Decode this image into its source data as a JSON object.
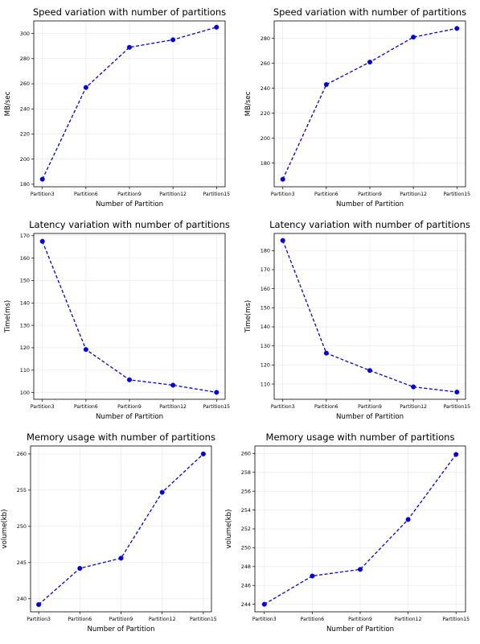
{
  "colors": {
    "line": "#0000e6",
    "marker": "#0000e6",
    "grid": "#e6e6e6",
    "frame": "#000000"
  },
  "chart_data": [
    {
      "type": "line",
      "title": "Speed variation with number of partitions",
      "xlabel": "Number of Partition",
      "ylabel": "MB/sec",
      "categories": [
        "Partition3",
        "Partition6",
        "Partition9",
        "Partition12",
        "Partition15"
      ],
      "values": [
        184,
        257,
        289,
        295,
        305
      ],
      "ylim": [
        178,
        310
      ],
      "yticks": [
        180,
        200,
        220,
        240,
        260,
        280,
        300
      ],
      "ytick_labels": [
        "180",
        "200",
        "220",
        "240",
        "260",
        "280",
        "300"
      ],
      "grid": true,
      "line_style": "dashed"
    },
    {
      "type": "line",
      "title": "Speed variation with number of partitions",
      "xlabel": "Number of Partition",
      "ylabel": "MB/sec",
      "categories": [
        "Partition3",
        "Partition6",
        "Partition9",
        "Partition12",
        "Partition15"
      ],
      "values": [
        167,
        243,
        261,
        281,
        288
      ],
      "ylim": [
        161,
        294
      ],
      "yticks": [
        180,
        200,
        220,
        240,
        260,
        280
      ],
      "ytick_labels": [
        "180",
        "200",
        "220",
        "240",
        "260",
        "280"
      ],
      "grid": true,
      "line_style": "dashed"
    },
    {
      "type": "line",
      "title": "Latency variation with number of partitions",
      "xlabel": "Number of Partition",
      "ylabel": "Time(ms)",
      "categories": [
        "Partition3",
        "Partition6",
        "Partition9",
        "Partition12",
        "Partition15"
      ],
      "values": [
        167.5,
        119.2,
        105.7,
        103.3,
        100.1
      ],
      "ylim": [
        97,
        171
      ],
      "yticks": [
        100,
        110,
        120,
        130,
        140,
        150,
        160,
        170
      ],
      "ytick_labels": [
        "100",
        "110",
        "120",
        "130",
        "140",
        "150",
        "160",
        "170"
      ],
      "grid": true,
      "line_style": "dashed"
    },
    {
      "type": "line",
      "title": "Latency variation with number of partitions",
      "xlabel": "Number of Partition",
      "ylabel": "Time(ms)",
      "categories": [
        "Partition3",
        "Partition6",
        "Partition9",
        "Partition12",
        "Partition15"
      ],
      "values": [
        185.3,
        126.2,
        117.1,
        108.5,
        105.8
      ],
      "ylim": [
        102,
        189
      ],
      "yticks": [
        110,
        120,
        130,
        140,
        150,
        160,
        170,
        180
      ],
      "ytick_labels": [
        "110",
        "120",
        "130",
        "140",
        "150",
        "160",
        "170",
        "180"
      ],
      "grid": true,
      "line_style": "dashed"
    },
    {
      "type": "line",
      "title": "Memory usage with number of partitions",
      "xlabel": "Number of Partition",
      "ylabel": "volume(kb)",
      "categories": [
        "Partition3",
        "Partition6",
        "Partition9",
        "Partition12",
        "Partition15"
      ],
      "values": [
        239.2,
        244.2,
        245.6,
        254.7,
        260.0
      ],
      "ylim": [
        238.2,
        261.1
      ],
      "yticks": [
        240,
        245,
        250,
        255,
        260
      ],
      "ytick_labels": [
        "240",
        "245",
        "250",
        "255",
        "260"
      ],
      "grid": true,
      "line_style": "dashed"
    },
    {
      "type": "line",
      "title": "Memory usage with number of partitions",
      "xlabel": "Number of Partition",
      "ylabel": "volume(kb)",
      "categories": [
        "Partition3",
        "Partition6",
        "Partition9",
        "Partition12",
        "Partition15"
      ],
      "values": [
        244.0,
        247.0,
        247.7,
        253.0,
        259.9
      ],
      "ylim": [
        243.2,
        260.8
      ],
      "yticks": [
        244,
        246,
        248,
        250,
        252,
        254,
        256,
        258,
        260
      ],
      "ytick_labels": [
        "244",
        "246",
        "248",
        "250",
        "252",
        "254",
        "256",
        "258",
        "260"
      ],
      "grid": true,
      "line_style": "dashed"
    }
  ]
}
